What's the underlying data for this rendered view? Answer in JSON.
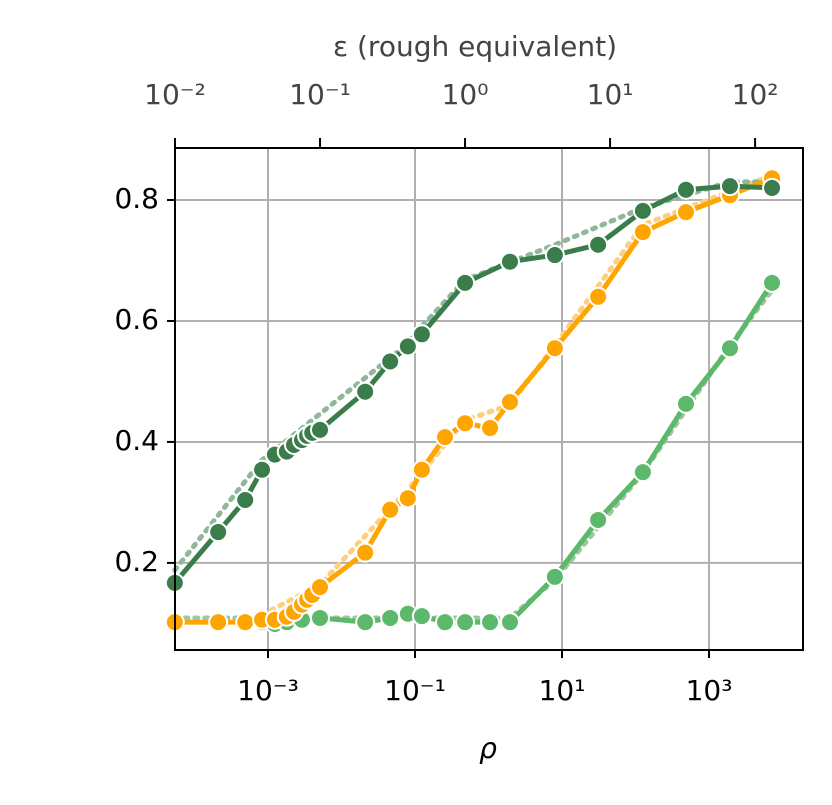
{
  "chart_data": {
    "type": "line",
    "xlabel": "ρ",
    "x2label": "ε (rough equivalent)",
    "xscale": "log",
    "grid": true,
    "xlim": [
      5.43e-05,
      19000
    ],
    "ylim": [
      0.056,
      0.886
    ],
    "x2lim": [
      0.01,
      214
    ],
    "xticks": [
      {
        "value": 0.001,
        "label": "10⁻³"
      },
      {
        "value": 0.1,
        "label": "10⁻¹"
      },
      {
        "value": 10,
        "label": "10¹"
      },
      {
        "value": 1000,
        "label": "10³"
      }
    ],
    "x2ticks": [
      {
        "value": 0.01,
        "label": "10⁻²"
      },
      {
        "value": 0.1,
        "label": "10⁻¹"
      },
      {
        "value": 1,
        "label": "10⁰"
      },
      {
        "value": 10,
        "label": "10¹"
      },
      {
        "value": 100,
        "label": "10²"
      }
    ],
    "yticks": [
      0.2,
      0.4,
      0.6,
      0.8
    ],
    "series": [
      {
        "color": "#9cc7a0",
        "style": "dotted",
        "x": [
          5.4e-05,
          0.00083,
          1.96,
          8.0,
          126,
          1930,
          7200
        ],
        "values": [
          0.109,
          0.109,
          0.109,
          0.172,
          0.349,
          0.56,
          0.651
        ]
      },
      {
        "color": "#ffcf80",
        "style": "dotted",
        "x": [
          0.00083,
          0.0051,
          0.08,
          0.48,
          1.96,
          8.0,
          126,
          7200
        ],
        "values": [
          0.114,
          0.164,
          0.321,
          0.436,
          0.461,
          0.56,
          0.759,
          0.841
        ]
      },
      {
        "color": "#8fb89a",
        "style": "dotted",
        "x": [
          5.4e-05,
          0.00083,
          0.0625,
          0.48,
          8.0,
          126,
          1930,
          7200
        ],
        "values": [
          0.188,
          0.37,
          0.552,
          0.668,
          0.726,
          0.787,
          0.83,
          0.83
        ]
      },
      {
        "color": "#5cb86a",
        "style": "solid",
        "x": [
          0.00083,
          0.00124,
          0.0018,
          0.0029,
          0.0051,
          0.021,
          0.046,
          0.08,
          0.124,
          0.256,
          0.48,
          1.05,
          1.96,
          8.0,
          31,
          126,
          486,
          1930,
          7200
        ],
        "values": [
          0.102,
          0.099,
          0.102,
          0.106,
          0.109,
          0.102,
          0.109,
          0.116,
          0.112,
          0.102,
          0.102,
          0.102,
          0.102,
          0.177,
          0.271,
          0.35,
          0.463,
          0.555,
          0.663
        ]
      },
      {
        "color": "#ffa500",
        "style": "solid",
        "x": [
          5.4e-05,
          0.00021,
          0.00049,
          0.00083,
          0.00124,
          0.0018,
          0.00226,
          0.0029,
          0.0034,
          0.004,
          0.0051,
          0.021,
          0.046,
          0.08,
          0.124,
          0.256,
          0.48,
          1.05,
          1.96,
          8.0,
          31,
          126,
          486,
          1930,
          7200
        ],
        "values": [
          0.102,
          0.102,
          0.102,
          0.106,
          0.106,
          0.111,
          0.119,
          0.131,
          0.139,
          0.147,
          0.16,
          0.217,
          0.288,
          0.307,
          0.354,
          0.408,
          0.431,
          0.423,
          0.466,
          0.555,
          0.64,
          0.747,
          0.78,
          0.808,
          0.836
        ]
      },
      {
        "color": "#3a7d4a",
        "style": "solid",
        "x": [
          5.4e-05,
          0.00021,
          0.00049,
          0.00083,
          0.00124,
          0.0018,
          0.00226,
          0.0029,
          0.0034,
          0.004,
          0.0051,
          0.021,
          0.046,
          0.08,
          0.124,
          0.48,
          1.96,
          8.0,
          31,
          126,
          486,
          1930,
          7200
        ],
        "values": [
          0.167,
          0.251,
          0.304,
          0.354,
          0.379,
          0.384,
          0.395,
          0.403,
          0.41,
          0.415,
          0.42,
          0.483,
          0.533,
          0.558,
          0.578,
          0.663,
          0.698,
          0.709,
          0.726,
          0.782,
          0.817,
          0.823,
          0.82
        ]
      }
    ]
  }
}
